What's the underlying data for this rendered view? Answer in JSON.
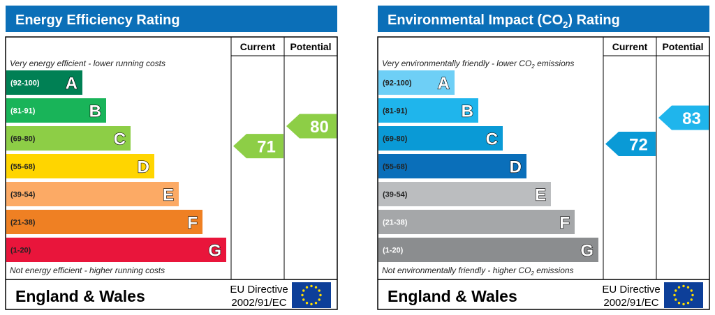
{
  "chart_data": [
    {
      "type": "bar",
      "title": "Energy Efficiency Rating",
      "title_sub": "",
      "title_suffix": "",
      "top_note": "Very energy efficient - lower running costs",
      "bottom_note": "Not energy efficient - higher running costs",
      "top_sub": "",
      "top_after": "",
      "bottom_sub": "",
      "bottom_after": "",
      "col_current": "Current",
      "col_potential": "Potential",
      "categories": [
        "A",
        "B",
        "C",
        "D",
        "E",
        "F",
        "G"
      ],
      "ranges": [
        "(92-100)",
        "(81-91)",
        "(69-80)",
        "(55-68)",
        "(39-54)",
        "(21-38)",
        "(1-20)"
      ],
      "bands_min": [
        92,
        81,
        69,
        55,
        39,
        21,
        1
      ],
      "colors": [
        "#008054",
        "#19b459",
        "#8dce46",
        "#ffd500",
        "#fcaa65",
        "#ef8023",
        "#e9153b"
      ],
      "range_text_colors": [
        "#ffffff",
        "#ffffff",
        "#222222",
        "#222222",
        "#222222",
        "#222222",
        "#222222"
      ],
      "current": 71,
      "potential": 80,
      "current_color": "#8dce46",
      "potential_color": "#8dce46",
      "footer_region": "England & Wales",
      "footer_directive_1": "EU Directive",
      "footer_directive_2": "2002/91/EC"
    },
    {
      "type": "bar",
      "title": "Environmental Impact (CO",
      "title_sub": "2",
      "title_suffix": ") Rating",
      "top_note": "Very environmentally friendly - lower CO",
      "top_sub": "2",
      "top_after": " emissions",
      "bottom_note": "Not environmentally friendly - higher CO",
      "bottom_sub": "2",
      "bottom_after": " emissions",
      "col_current": "Current",
      "col_potential": "Potential",
      "categories": [
        "A",
        "B",
        "C",
        "D",
        "E",
        "F",
        "G"
      ],
      "ranges": [
        "(92-100)",
        "(81-91)",
        "(69-80)",
        "(55-68)",
        "(39-54)",
        "(21-38)",
        "(1-20)"
      ],
      "bands_min": [
        92,
        81,
        69,
        55,
        39,
        21,
        1
      ],
      "colors": [
        "#6ecff6",
        "#1fb5ec",
        "#0a9ad6",
        "#0a6fba",
        "#bbbdbf",
        "#a5a7a9",
        "#8b8d8f"
      ],
      "range_text_colors": [
        "#222222",
        "#222222",
        "#222222",
        "#222222",
        "#222222",
        "#ffffff",
        "#ffffff"
      ],
      "current": 72,
      "potential": 83,
      "current_color": "#0a9ad6",
      "potential_color": "#1fb5ec",
      "footer_region": "England & Wales",
      "footer_directive_1": "EU Directive",
      "footer_directive_2": "2002/91/EC"
    }
  ],
  "colors": {
    "header": "#0b6fb8",
    "border": "#000000",
    "eu_flag": "#0d3f99",
    "eu_star": "#ffdd00"
  }
}
